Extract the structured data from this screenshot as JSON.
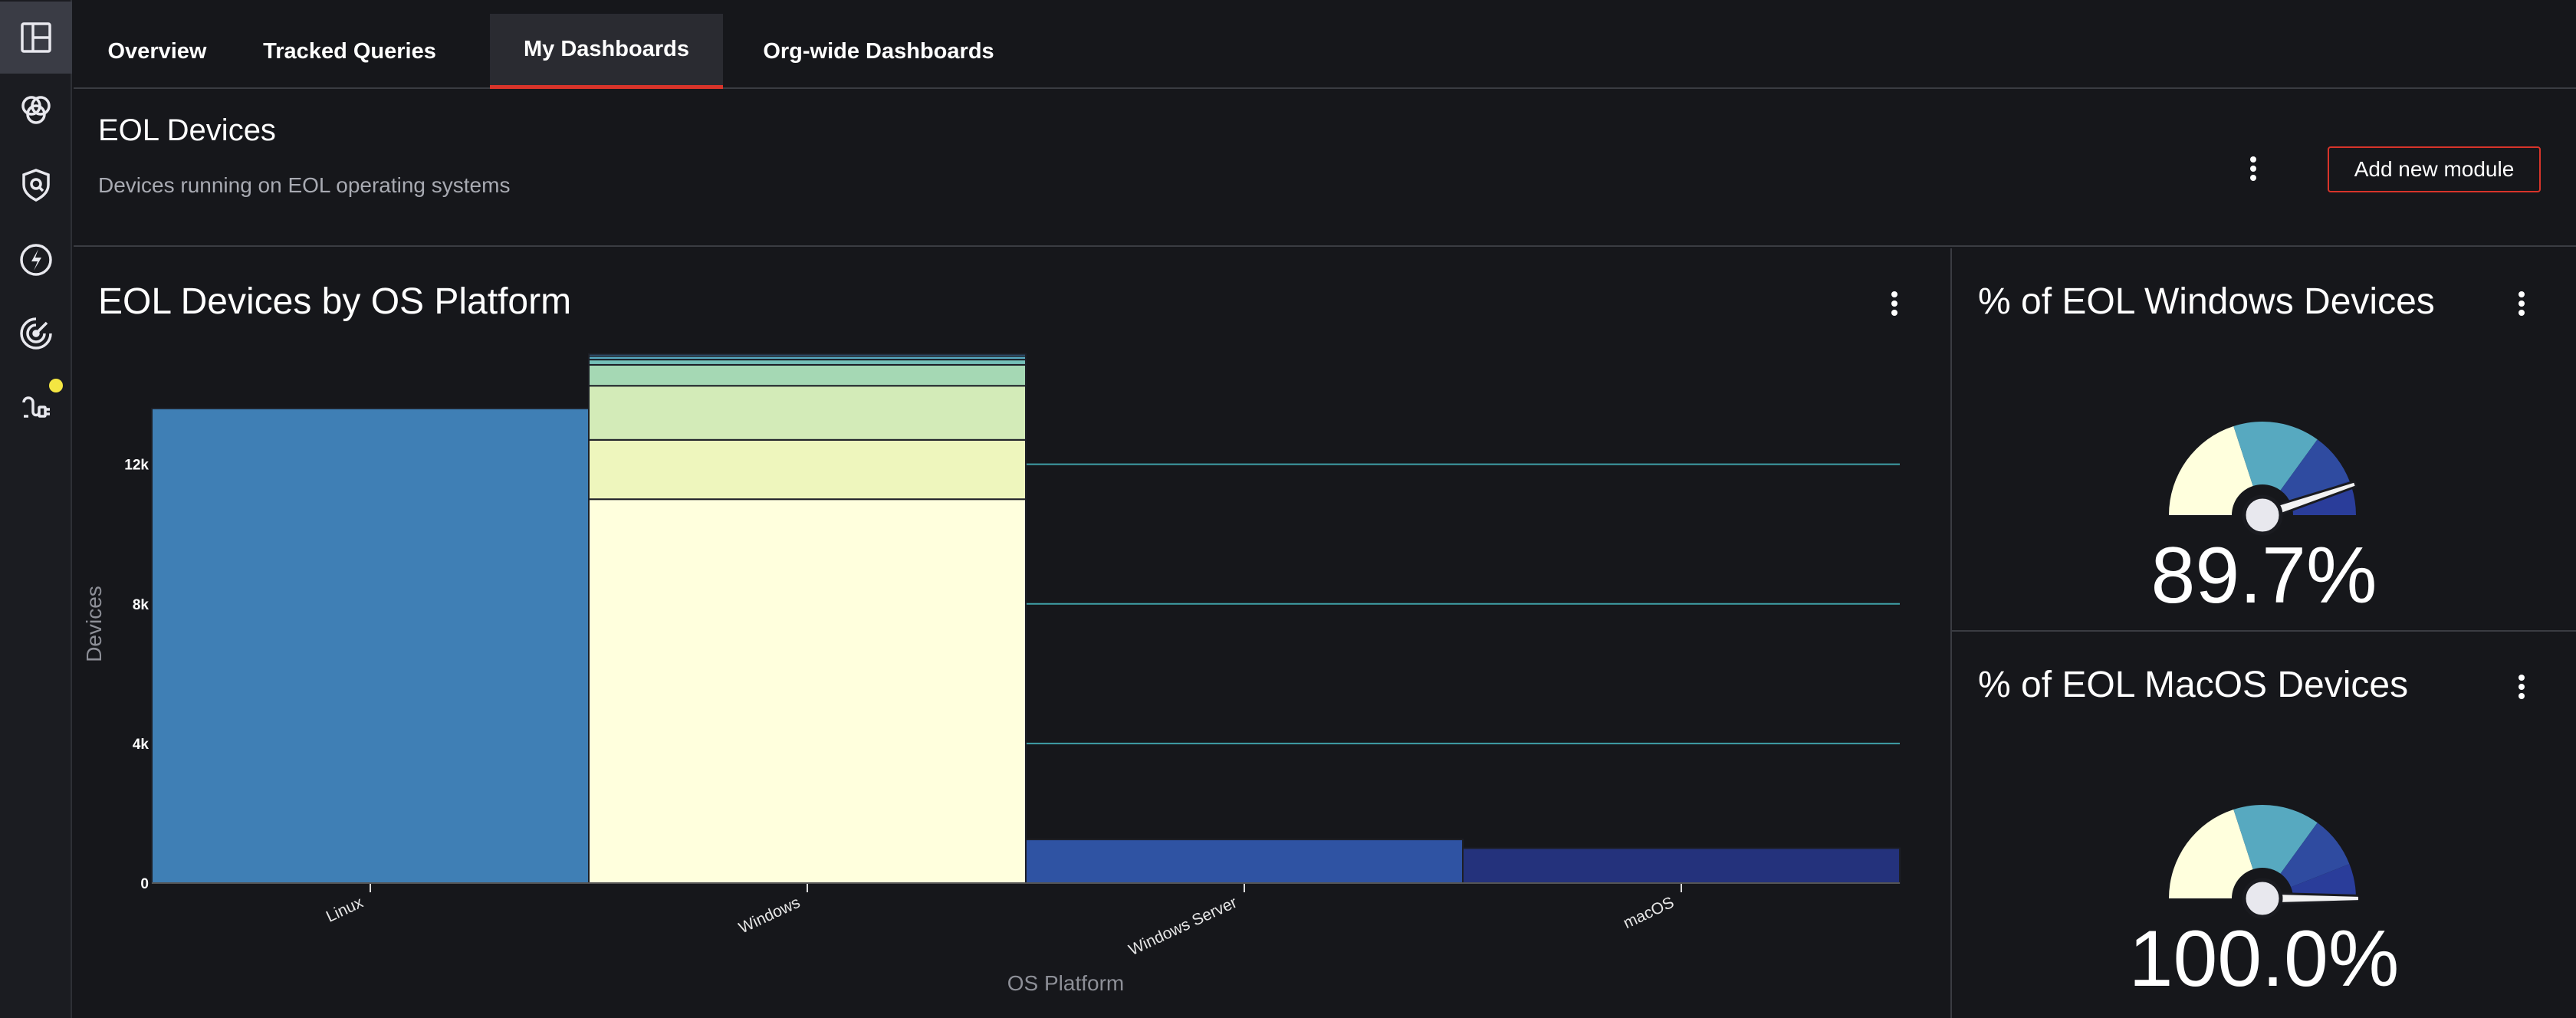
{
  "sidebar": {
    "items": [
      {
        "icon": "dashboard-icon",
        "active": true
      },
      {
        "icon": "venn-icon",
        "active": false
      },
      {
        "icon": "shield-icon",
        "active": false
      },
      {
        "icon": "bolt-icon",
        "active": false
      },
      {
        "icon": "radar-icon",
        "active": false
      },
      {
        "icon": "plug-icon",
        "active": false,
        "notification": true
      }
    ]
  },
  "tabs": [
    {
      "label": "Overview"
    },
    {
      "label": "Tracked Queries"
    },
    {
      "label": "My Dashboards",
      "active": true
    },
    {
      "label": "Org-wide Dashboards"
    }
  ],
  "header": {
    "title": "EOL Devices",
    "subtitle": "Devices running on EOL operating systems",
    "add_button": "Add new module"
  },
  "colors": {
    "accent": "#d8342a",
    "bg": "#16171b",
    "linux": "#3f7fb5",
    "windows_server": "#2f53a3",
    "macos": "#24327c",
    "grid": "#3fa0a8"
  },
  "chart_data": {
    "type": "bar",
    "title": "EOL Devices by OS Platform",
    "xlabel": "OS Platform",
    "ylabel": "Devices",
    "ylim": [
      0,
      15200
    ],
    "yticks": [
      {
        "value": 0,
        "label": "0"
      },
      {
        "value": 4000,
        "label": "4k"
      },
      {
        "value": 8000,
        "label": "8k"
      },
      {
        "value": 12000,
        "label": "12k"
      }
    ],
    "categories": [
      "Linux",
      "Windows",
      "Windows Server",
      "macOS"
    ],
    "stacks": [
      {
        "category": "Linux",
        "segments": [
          {
            "value": 13600,
            "color": "#3f7fb5"
          }
        ]
      },
      {
        "category": "Windows",
        "segments": [
          {
            "value": 11000,
            "color": "#ffffdd"
          },
          {
            "value": 1700,
            "color": "#eef6bd"
          },
          {
            "value": 1550,
            "color": "#d3ebb8"
          },
          {
            "value": 600,
            "color": "#a5d8b4"
          },
          {
            "value": 150,
            "color": "#74c0b8"
          },
          {
            "value": 100,
            "color": "#57a9c0"
          },
          {
            "value": 60,
            "color": "#3f7fb5"
          }
        ]
      },
      {
        "category": "Windows Server",
        "segments": [
          {
            "value": 1250,
            "color": "#2f53a3"
          }
        ]
      },
      {
        "category": "macOS",
        "segments": [
          {
            "value": 1000,
            "color": "#24327c"
          }
        ]
      }
    ]
  },
  "gauges": [
    {
      "title": "% of EOL Windows Devices",
      "value": 89.7,
      "display": "89.7%"
    },
    {
      "title": "% of EOL MacOS Devices",
      "value": 100.0,
      "display": "100.0%"
    }
  ]
}
